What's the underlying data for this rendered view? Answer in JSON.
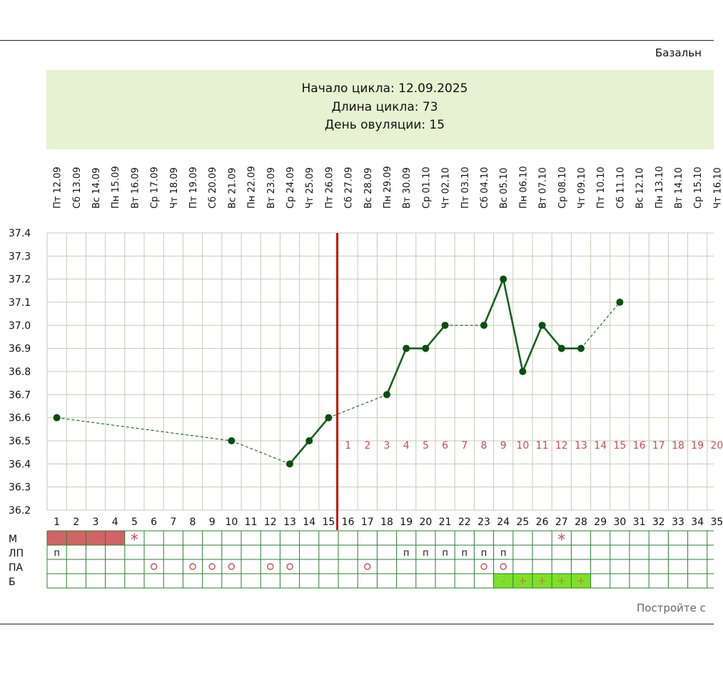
{
  "header": {
    "title": "Базальн"
  },
  "info": {
    "cycle_start": "Начало цикла: 12.09.2025",
    "cycle_length": "Длина цикла: 73",
    "ovulation_day": "День овуляции: 15"
  },
  "footer": {
    "text": "Постройте с"
  },
  "chart_data": {
    "type": "line",
    "title": "",
    "xlabel": "",
    "ylabel": "",
    "ylim": [
      36.2,
      37.4
    ],
    "yticks": [
      "37.4",
      "37.3",
      "37.2",
      "37.1",
      "37.0",
      "36.9",
      "36.8",
      "36.7",
      "36.6",
      "36.5",
      "36.4",
      "36.3",
      "36.2"
    ],
    "days": [
      1,
      2,
      3,
      4,
      5,
      6,
      7,
      8,
      9,
      10,
      11,
      12,
      13,
      14,
      15,
      16,
      17,
      18,
      19,
      20,
      21,
      22,
      23,
      24,
      25,
      26,
      27,
      28,
      29,
      30,
      31,
      32,
      33,
      34,
      35
    ],
    "dates": [
      "Пт 12.09",
      "Сб 13.09",
      "Вс 14.09",
      "Пн 15.09",
      "Вт 16.09",
      "Ср 17.09",
      "Чт 18.09",
      "Пт 19.09",
      "Сб 20.09",
      "Вс 21.09",
      "Пн 22.09",
      "Вт 23.09",
      "Ср 24.09",
      "Чт 25.09",
      "Пт 26.09",
      "Сб 27.09",
      "Вс 28.09",
      "Пн 29.09",
      "Вт 30.09",
      "Ср 01.10",
      "Чт 02.10",
      "Пт 03.10",
      "Сб 04.10",
      "Вс 05.10",
      "Пн 06.10",
      "Вт 07.10",
      "Ср 08.10",
      "Чт 09.10",
      "Пт 10.10",
      "Сб 11.10",
      "Вс 12.10",
      "Пн 13.10",
      "Вт 14.10",
      "Ср 15.10",
      "Чт 16.10"
    ],
    "series": [
      {
        "values": [
          {
            "day": 1,
            "temp": 36.6
          },
          {
            "day": 10,
            "temp": 36.5
          },
          {
            "day": 13,
            "temp": 36.4
          },
          {
            "day": 14,
            "temp": 36.5
          },
          {
            "day": 15,
            "temp": 36.6
          },
          {
            "day": 18,
            "temp": 36.7
          },
          {
            "day": 19,
            "temp": 36.9
          },
          {
            "day": 20,
            "temp": 36.9
          },
          {
            "day": 21,
            "temp": 37.0
          },
          {
            "day": 23,
            "temp": 37.0
          },
          {
            "day": 24,
            "temp": 37.2
          },
          {
            "day": 25,
            "temp": 36.8
          },
          {
            "day": 26,
            "temp": 37.0
          },
          {
            "day": 27,
            "temp": 36.9
          },
          {
            "day": 28,
            "temp": 36.9
          },
          {
            "day": 30,
            "temp": 37.1
          }
        ]
      }
    ],
    "ovulation_line_day": 15,
    "luteal_numbers": [
      "1",
      "2",
      "3",
      "4",
      "5",
      "6",
      "7",
      "8",
      "9",
      "10",
      "11",
      "12",
      "13",
      "14",
      "15",
      "16",
      "17",
      "18",
      "19",
      "20"
    ],
    "rows": [
      {
        "label": "М",
        "cells": [
          {
            "day": 1,
            "mark": "fill"
          },
          {
            "day": 2,
            "mark": "fill"
          },
          {
            "day": 3,
            "mark": "fill"
          },
          {
            "day": 4,
            "mark": "fill"
          },
          {
            "day": 5,
            "mark": "*"
          },
          {
            "day": 27,
            "mark": "*"
          }
        ]
      },
      {
        "label": "ЛП",
        "cells": [
          {
            "day": 1,
            "mark": "п"
          },
          {
            "day": 19,
            "mark": "п"
          },
          {
            "day": 20,
            "mark": "п"
          },
          {
            "day": 21,
            "mark": "п"
          },
          {
            "day": 22,
            "mark": "п"
          },
          {
            "day": 23,
            "mark": "п"
          },
          {
            "day": 24,
            "mark": "п"
          }
        ]
      },
      {
        "label": "ПА",
        "cells": [
          {
            "day": 6,
            "mark": "o"
          },
          {
            "day": 8,
            "mark": "o"
          },
          {
            "day": 9,
            "mark": "o"
          },
          {
            "day": 10,
            "mark": "o"
          },
          {
            "day": 12,
            "mark": "o"
          },
          {
            "day": 13,
            "mark": "o"
          },
          {
            "day": 17,
            "mark": "o"
          },
          {
            "day": 23,
            "mark": "o"
          },
          {
            "day": 24,
            "mark": "o"
          }
        ]
      },
      {
        "label": "Б",
        "cells": [
          {
            "day": 24,
            "mark": "-"
          },
          {
            "day": 25,
            "mark": "+"
          },
          {
            "day": 26,
            "mark": "+"
          },
          {
            "day": 27,
            "mark": "+"
          },
          {
            "day": 28,
            "mark": "+"
          }
        ]
      }
    ],
    "colors": {
      "line": "#1b5e20",
      "point": "#0d4d12",
      "grid": "#c9c9b8",
      "ovulation": "#cc1111",
      "luteal_text": "#c0505a",
      "menses_fill": "#d06466",
      "marker_green_bg": "#7fe02a",
      "table_border": "#2e7d32",
      "info_bg": "#e6f2d2"
    }
  }
}
